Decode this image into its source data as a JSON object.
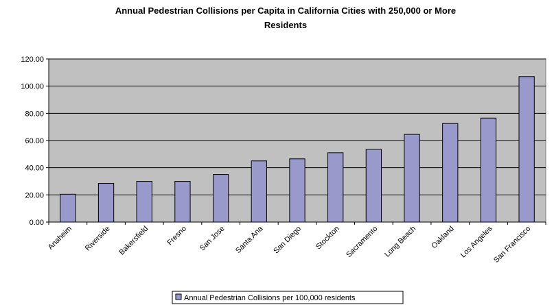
{
  "chart_data": {
    "type": "bar",
    "title_lines": [
      "Annual Pedestrian Collisions per Capita in California Cities with 250,000 or More",
      "Residents"
    ],
    "categories": [
      "Anaheim",
      "Riverside",
      "Bakersfield",
      "Fresno",
      "San Jose",
      "Santa Ana",
      "San Diego",
      "Stockton",
      "Sacramento",
      "Long Beach",
      "Oakland",
      "Los Angeles",
      "San Francisco"
    ],
    "series": [
      {
        "name": "Annual Pedestrian Collisions per 100,000 residents",
        "values": [
          20.5,
          28.5,
          30.0,
          30.0,
          35.0,
          45.0,
          46.5,
          51.0,
          53.5,
          64.5,
          72.5,
          76.5,
          107.0
        ],
        "color": "#9999cc"
      }
    ],
    "yticks": [
      "0.00",
      "20.00",
      "40.00",
      "60.00",
      "80.00",
      "100.00",
      "120.00"
    ],
    "ylim": [
      0,
      120
    ],
    "grid": true,
    "plot_background": "#c0c0c0",
    "legend_position": "bottom"
  }
}
